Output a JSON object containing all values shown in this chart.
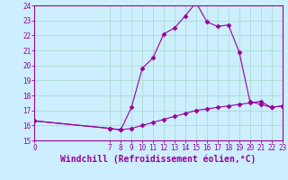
{
  "xlabel": "Windchill (Refroidissement éolien,°C)",
  "ylabel": "",
  "bg_color": "#cceeff",
  "grid_color": "#aaddcc",
  "line_color": "#990099",
  "xlim": [
    0,
    23
  ],
  "ylim": [
    15,
    24
  ],
  "yticks": [
    15,
    16,
    17,
    18,
    19,
    20,
    21,
    22,
    23,
    24
  ],
  "xticks": [
    0,
    7,
    8,
    9,
    10,
    11,
    12,
    13,
    14,
    15,
    16,
    17,
    18,
    19,
    20,
    21,
    22,
    23
  ],
  "line1_x": [
    0,
    7,
    8,
    9,
    10,
    11,
    12,
    13,
    14,
    15,
    16,
    17,
    18,
    19,
    20,
    21,
    22,
    23
  ],
  "line1_y": [
    16.3,
    15.8,
    15.7,
    17.2,
    19.8,
    20.5,
    22.1,
    22.5,
    23.3,
    24.2,
    22.9,
    22.6,
    22.7,
    20.9,
    17.6,
    17.4,
    17.2,
    17.3
  ],
  "line2_x": [
    0,
    7,
    8,
    9,
    10,
    11,
    12,
    13,
    14,
    15,
    16,
    17,
    18,
    19,
    20,
    21,
    22,
    23
  ],
  "line2_y": [
    16.3,
    15.8,
    15.7,
    15.8,
    16.0,
    16.2,
    16.4,
    16.6,
    16.8,
    17.0,
    17.1,
    17.2,
    17.3,
    17.4,
    17.5,
    17.6,
    17.2,
    17.3
  ],
  "marker": "D",
  "markersize": 2.5,
  "linewidth": 0.8,
  "tick_fontsize": 5.5,
  "xlabel_fontsize": 7.0
}
